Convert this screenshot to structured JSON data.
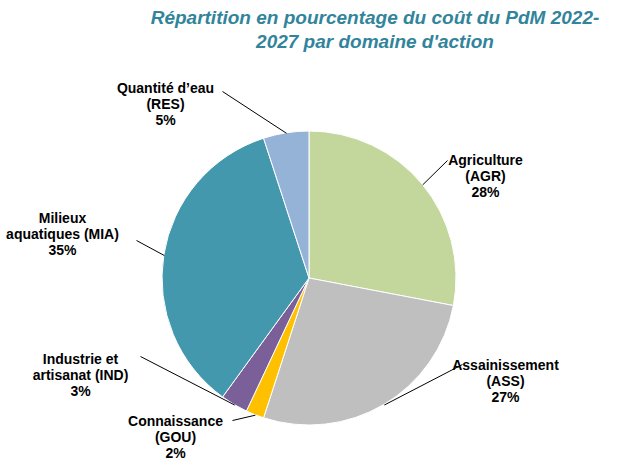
{
  "chart_data": {
    "type": "pie",
    "title": "Répartition en pourcentage du coût du PdM 2022-2027 par domaine d'action",
    "categories": [
      "Agriculture\n(AGR)",
      "Assainissement\n(ASS)",
      "Connaissance\n(GOU)",
      "Industrie et\nartisanat (IND)",
      "Milieux\naquatiques (MIA)",
      "Quantité d’eau\n(RES)"
    ],
    "values": [
      28,
      27,
      2,
      3,
      35,
      5
    ],
    "value_labels": [
      "28%",
      "27%",
      "2%",
      "3%",
      "35%",
      "5%"
    ],
    "colors": [
      "#c3d69b",
      "#bfbfbf",
      "#ffc000",
      "#7a5f99",
      "#4398ae",
      "#95b3d7"
    ],
    "data_labels": true
  }
}
